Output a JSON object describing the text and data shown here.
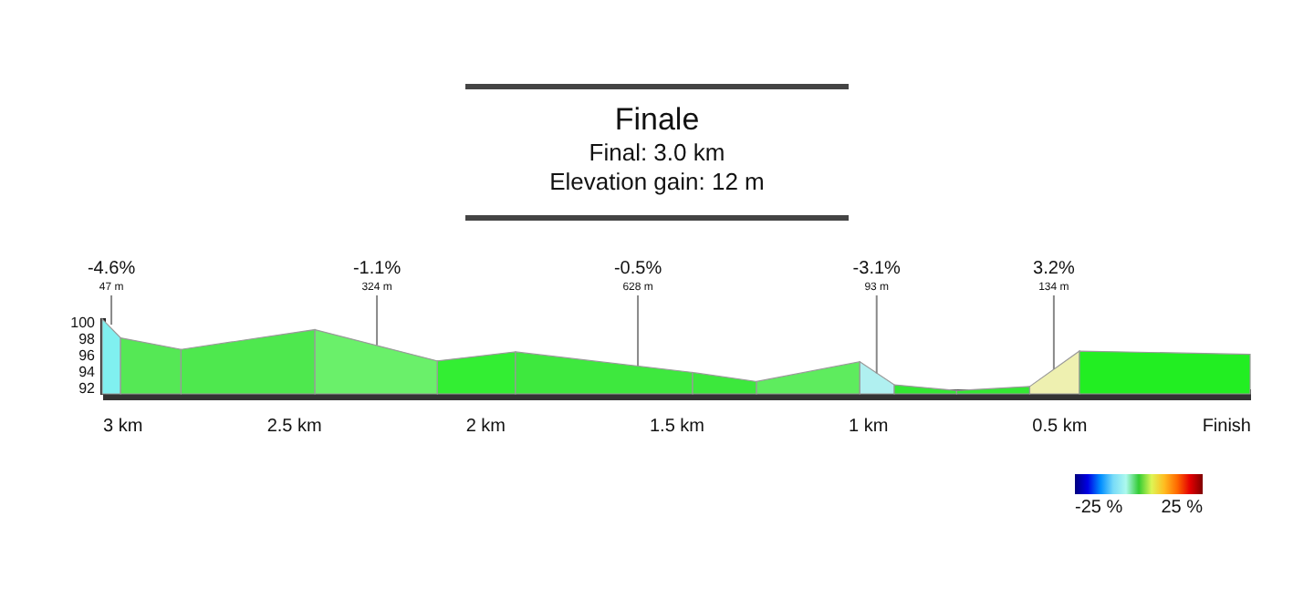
{
  "chart_data": {
    "type": "area",
    "title": "Finale",
    "subtitle": "Final: 3.0 km\nElevation gain: 12 m",
    "series": [
      {
        "color": "#80f0f0",
        "x": [
          3.0,
          2.952
        ],
        "values": [
          100.6,
          98.3
        ]
      },
      {
        "color": "#55e855",
        "x": [
          2.952,
          2.794
        ],
        "values": [
          98.3,
          96.9
        ]
      },
      {
        "color": "#4ee84e",
        "x": [
          2.794,
          2.444
        ],
        "values": [
          96.9,
          99.3
        ]
      },
      {
        "color": "#6af06a",
        "x": [
          2.444,
          2.124
        ],
        "values": [
          99.3,
          95.5
        ]
      },
      {
        "color": "#33ee33",
        "x": [
          2.124,
          1.92
        ],
        "values": [
          95.5,
          96.6
        ]
      },
      {
        "color": "#3ee83e",
        "x": [
          1.92,
          1.457
        ],
        "values": [
          96.6,
          94.1
        ]
      },
      {
        "color": "#3ce83c",
        "x": [
          1.457,
          1.29
        ],
        "values": [
          94.1,
          93.0
        ]
      },
      {
        "color": "#5eec5e",
        "x": [
          1.29,
          1.02
        ],
        "values": [
          93.0,
          95.4
        ]
      },
      {
        "color": "#b0f0f0",
        "x": [
          1.02,
          0.93
        ],
        "values": [
          95.4,
          92.6
        ]
      },
      {
        "color": "#33e833",
        "x": [
          0.93,
          0.767
        ],
        "values": [
          92.6,
          91.9
        ]
      },
      {
        "color": "#33e833",
        "x": [
          0.767,
          0.576
        ],
        "values": [
          91.9,
          92.4
        ]
      },
      {
        "color": "#eef0b0",
        "x": [
          0.576,
          0.446
        ],
        "values": [
          92.4,
          96.7
        ]
      },
      {
        "color": "#22ee22",
        "x": [
          0.446,
          0.0
        ],
        "values": [
          96.7,
          96.3
        ]
      }
    ],
    "annotations": [
      {
        "text": "-4.6%",
        "x": 2.976,
        "y": 99.9
      },
      {
        "text": "47 m",
        "x": 2.976,
        "y": 99.9
      },
      {
        "text": "-1.1%",
        "x": 2.282,
        "y": 97.4
      },
      {
        "text": "324 m",
        "x": 2.282,
        "y": 97.4
      },
      {
        "text": "-0.5%",
        "x": 1.6,
        "y": 94.9
      },
      {
        "text": "628 m",
        "x": 1.6,
        "y": 94.9
      },
      {
        "text": "-3.1%",
        "x": 0.976,
        "y": 94.0
      },
      {
        "text": "93 m",
        "x": 0.976,
        "y": 94.0
      },
      {
        "text": "3.2%",
        "x": 0.513,
        "y": 94.5
      },
      {
        "text": "134 m",
        "x": 0.513,
        "y": 94.5
      }
    ],
    "xlim": [
      3,
      0
    ],
    "ylim": [
      91.5,
      100.8
    ],
    "xticks": [
      {
        "value": 3,
        "label": "3 km"
      },
      {
        "value": 2.5,
        "label": "2.5 km"
      },
      {
        "value": 2,
        "label": "2 km"
      },
      {
        "value": 1.5,
        "label": "1.5 km"
      },
      {
        "value": 1,
        "label": "1 km"
      },
      {
        "value": 0.5,
        "label": "0.5 km"
      },
      {
        "value": 0,
        "label": "Finish"
      }
    ],
    "yticks": [
      92,
      94,
      96,
      98,
      100
    ],
    "clim": [
      -25,
      25
    ],
    "cticks": [
      {
        "value": -25,
        "label": "-25 %"
      },
      {
        "value": 25,
        "label": "25 %"
      }
    ]
  }
}
